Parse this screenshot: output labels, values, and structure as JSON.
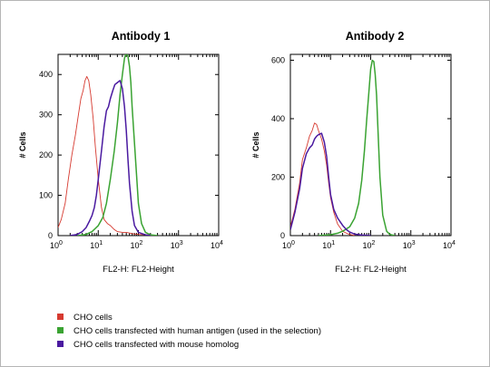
{
  "legend": [
    {
      "label": "CHO cells",
      "color": "#d63a30"
    },
    {
      "label": "CHO cells transfected with human antigen (used in the selection)",
      "color": "#3aa332"
    },
    {
      "label": "CHO cells transfected with mouse homolog",
      "color": "#4a1aa0"
    }
  ],
  "chart_data": [
    {
      "type": "line",
      "title": "Antibody 1",
      "xlabel": "FL2-H: FL2-Height",
      "ylabel": "# Cells",
      "x_scale": "log",
      "xlim": [
        1,
        10000
      ],
      "ylim": [
        0,
        450
      ],
      "x_ticks": [
        1,
        10,
        100,
        1000,
        10000
      ],
      "x_tick_labels": [
        [
          "10",
          "0"
        ],
        [
          "10",
          "1"
        ],
        [
          "10",
          "2"
        ],
        [
          "10",
          "3"
        ],
        [
          "10",
          "4"
        ]
      ],
      "y_ticks": [
        0,
        100,
        200,
        300,
        400
      ],
      "y_tick_labels": [
        "0",
        "100",
        "200",
        "300",
        "400"
      ],
      "series": [
        {
          "name": "CHO cells",
          "color": "#d63a30",
          "x": [
            1,
            1.2,
            1.5,
            1.8,
            2.2,
            2.7,
            3.2,
            3.7,
            4.2,
            4.7,
            5.2,
            5.8,
            6.5,
            7.5,
            8.5,
            10,
            12,
            14,
            17,
            20,
            25,
            30,
            40,
            50,
            70,
            100,
            150,
            200,
            300
          ],
          "y": [
            20,
            40,
            80,
            140,
            200,
            250,
            300,
            340,
            360,
            385,
            395,
            385,
            350,
            290,
            220,
            140,
            70,
            40,
            30,
            25,
            15,
            10,
            8,
            8,
            5,
            3,
            2,
            1,
            0
          ]
        },
        {
          "name": "CHO cells transfected with human antigen (used in the selection)",
          "color": "#3aa332",
          "x": [
            3,
            5,
            7,
            10,
            13,
            16,
            20,
            25,
            30,
            35,
            40,
            45,
            50,
            55,
            60,
            65,
            70,
            80,
            90,
            100,
            120,
            150,
            200,
            300
          ],
          "y": [
            0,
            3,
            10,
            25,
            45,
            80,
            140,
            210,
            280,
            350,
            400,
            440,
            455,
            445,
            420,
            380,
            320,
            230,
            150,
            80,
            30,
            8,
            2,
            0
          ]
        },
        {
          "name": "CHO cells transfected with mouse homolog",
          "color": "#4a1aa0",
          "x": [
            2,
            3,
            4,
            5,
            6,
            7,
            8,
            9,
            10,
            12,
            14,
            16,
            18,
            20,
            23,
            26,
            30,
            35,
            40,
            45,
            50,
            55,
            60,
            70,
            80,
            100,
            150,
            200
          ],
          "y": [
            0,
            3,
            10,
            20,
            35,
            50,
            70,
            100,
            140,
            210,
            270,
            310,
            320,
            340,
            360,
            375,
            380,
            385,
            365,
            320,
            260,
            190,
            130,
            60,
            25,
            8,
            2,
            0
          ]
        }
      ]
    },
    {
      "type": "line",
      "title": "Antibody 2",
      "xlabel": "FL2-H: FL2-Height",
      "ylabel": "# Cells",
      "x_scale": "log",
      "xlim": [
        1,
        10000
      ],
      "ylim": [
        0,
        620
      ],
      "x_ticks": [
        1,
        10,
        100,
        1000,
        10000
      ],
      "x_tick_labels": [
        [
          "10",
          "0"
        ],
        [
          "10",
          "1"
        ],
        [
          "10",
          "2"
        ],
        [
          "10",
          "3"
        ],
        [
          "10",
          "4"
        ]
      ],
      "y_ticks": [
        0,
        200,
        400,
        600
      ],
      "y_tick_labels": [
        "0",
        "200",
        "400",
        "600"
      ],
      "series": [
        {
          "name": "CHO cells",
          "color": "#d63a30",
          "x": [
            1,
            1.3,
            1.7,
            2,
            2.5,
            3,
            3.5,
            4,
            4.5,
            5,
            6,
            7,
            8,
            9,
            10,
            12,
            15,
            20,
            25,
            30,
            40
          ],
          "y": [
            30,
            90,
            180,
            260,
            300,
            340,
            360,
            385,
            380,
            360,
            330,
            290,
            240,
            180,
            130,
            80,
            40,
            15,
            8,
            4,
            0
          ]
        },
        {
          "name": "CHO cells transfected with human antigen (used in the selection)",
          "color": "#3aa332",
          "x": [
            5,
            10,
            15,
            20,
            30,
            40,
            50,
            60,
            70,
            80,
            90,
            100,
            110,
            120,
            130,
            140,
            150,
            170,
            200,
            250,
            300,
            400
          ],
          "y": [
            0,
            3,
            8,
            15,
            30,
            60,
            110,
            190,
            290,
            400,
            490,
            570,
            600,
            595,
            550,
            480,
            380,
            200,
            70,
            15,
            4,
            0
          ]
        },
        {
          "name": "CHO cells transfected with mouse homolog",
          "color": "#4a1aa0",
          "x": [
            1,
            1.3,
            1.7,
            2,
            2.5,
            3,
            3.5,
            4,
            4.5,
            5,
            6,
            7,
            8,
            9,
            10,
            12,
            15,
            20,
            25,
            30,
            40,
            60,
            100
          ],
          "y": [
            20,
            80,
            160,
            230,
            280,
            300,
            310,
            330,
            340,
            345,
            350,
            320,
            270,
            200,
            140,
            90,
            60,
            35,
            20,
            12,
            5,
            2,
            0
          ]
        }
      ]
    }
  ]
}
